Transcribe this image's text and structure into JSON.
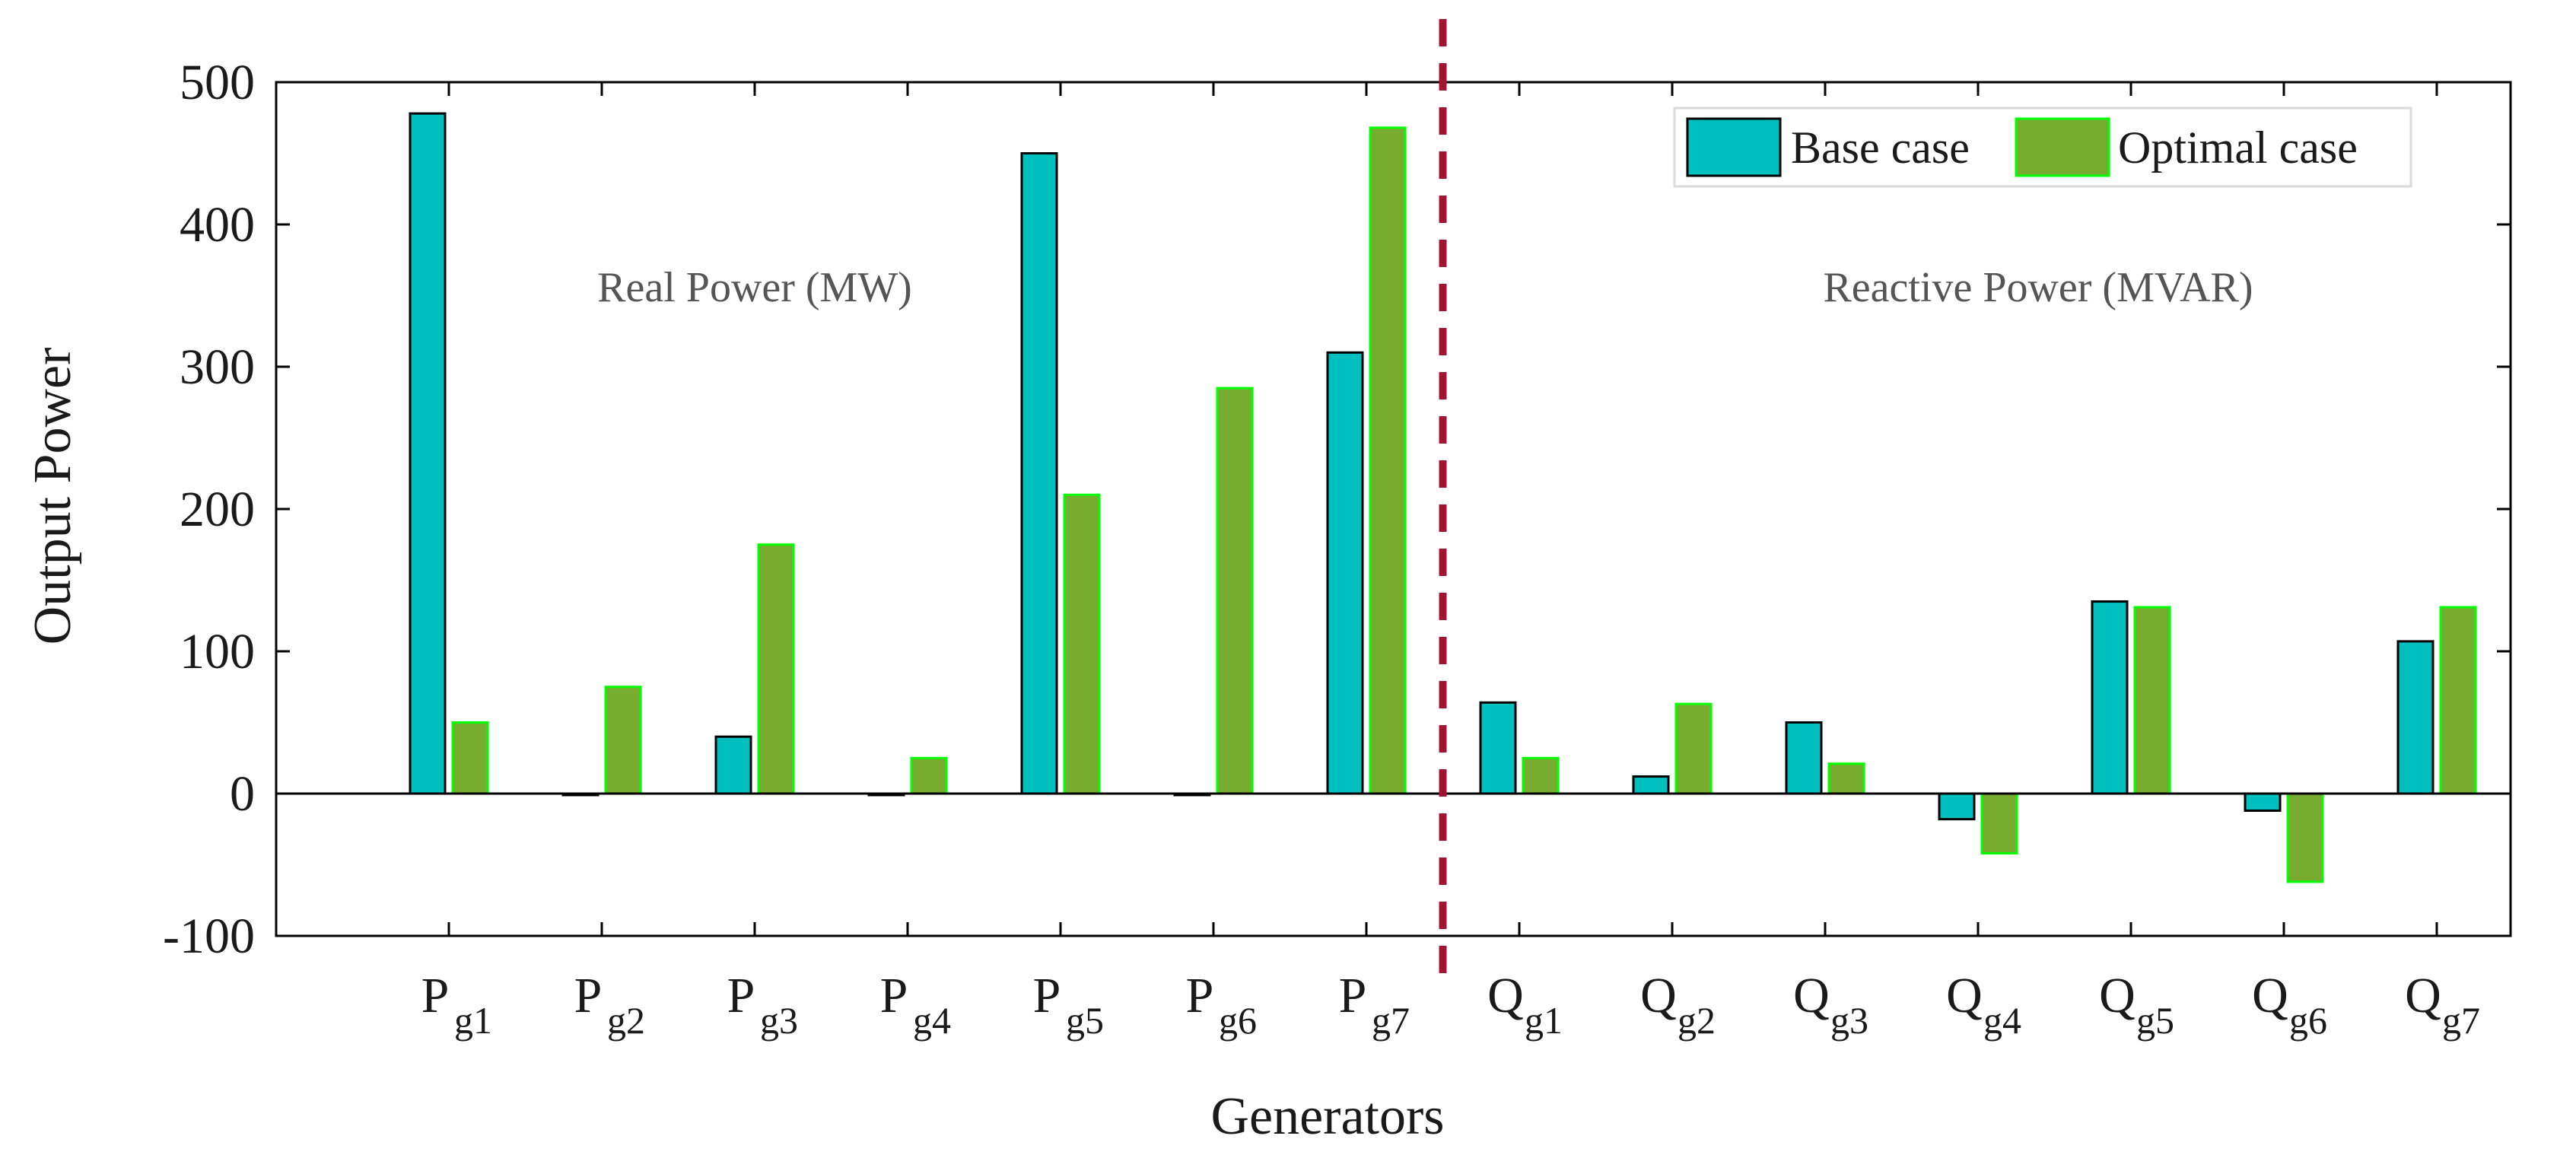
{
  "chart_data": {
    "type": "bar",
    "title": "",
    "xlabel": "Generators",
    "ylabel": "Output Power",
    "ylim": [
      -100,
      500
    ],
    "yticks": [
      -100,
      0,
      100,
      200,
      300,
      400,
      500
    ],
    "ytick_labels": [
      "-100",
      "0",
      "100",
      "200",
      "300",
      "400",
      "500"
    ],
    "grid": false,
    "legend_position": "top-right",
    "categories": [
      {
        "main": "P",
        "sub": "g1"
      },
      {
        "main": "P",
        "sub": "g2"
      },
      {
        "main": "P",
        "sub": "g3"
      },
      {
        "main": "P",
        "sub": "g4"
      },
      {
        "main": "P",
        "sub": "g5"
      },
      {
        "main": "P",
        "sub": "g6"
      },
      {
        "main": "P",
        "sub": "g7"
      },
      {
        "main": "Q",
        "sub": "g1"
      },
      {
        "main": "Q",
        "sub": "g2"
      },
      {
        "main": "Q",
        "sub": "g3"
      },
      {
        "main": "Q",
        "sub": "g4"
      },
      {
        "main": "Q",
        "sub": "g5"
      },
      {
        "main": "Q",
        "sub": "g6"
      },
      {
        "main": "Q",
        "sub": "g7"
      }
    ],
    "series": [
      {
        "name": "Base case",
        "fill": "#00bfbf",
        "stroke": "#000000",
        "values": [
          478,
          0,
          40,
          0,
          450,
          0,
          310,
          64,
          12,
          50,
          -18,
          135,
          -12,
          107
        ]
      },
      {
        "name": "Optimal case",
        "fill": "#77ac30",
        "stroke": "#00ff00",
        "values": [
          50,
          75,
          175,
          25,
          210,
          285,
          468,
          25,
          63,
          21,
          -42,
          131,
          -62,
          131
        ]
      }
    ],
    "annotations": [
      {
        "text": "Real Power (MW)",
        "region": "real"
      },
      {
        "text": "Reactive Power (MVAR)",
        "region": "reactive"
      }
    ],
    "divider": {
      "after_category_index": 6,
      "color": "#a2142f",
      "style": "dashed"
    }
  }
}
